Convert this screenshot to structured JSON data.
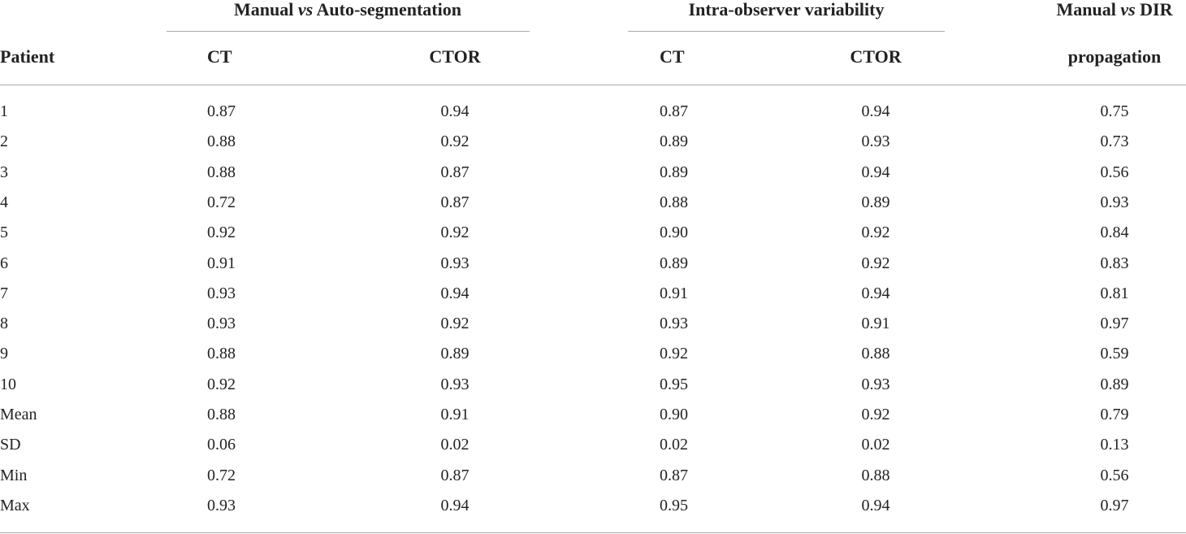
{
  "table": {
    "groups": [
      {
        "parts": [
          "Manual",
          "vs",
          "Auto-segmentation"
        ]
      },
      {
        "parts": [
          "Intra-observer variability"
        ]
      },
      {
        "parts": [
          "Manual",
          "vs",
          "DIR"
        ]
      }
    ],
    "columns": [
      "Patient",
      "CT",
      "CTOR",
      "CT",
      "CTOR",
      "propagation"
    ],
    "rows": [
      [
        "1",
        "0.87",
        "0.94",
        "0.87",
        "0.94",
        "0.75"
      ],
      [
        "2",
        "0.88",
        "0.92",
        "0.89",
        "0.93",
        "0.73"
      ],
      [
        "3",
        "0.88",
        "0.87",
        "0.89",
        "0.94",
        "0.56"
      ],
      [
        "4",
        "0.72",
        "0.87",
        "0.88",
        "0.89",
        "0.93"
      ],
      [
        "5",
        "0.92",
        "0.92",
        "0.90",
        "0.92",
        "0.84"
      ],
      [
        "6",
        "0.91",
        "0.93",
        "0.89",
        "0.92",
        "0.83"
      ],
      [
        "7",
        "0.93",
        "0.94",
        "0.91",
        "0.94",
        "0.81"
      ],
      [
        "8",
        "0.93",
        "0.92",
        "0.93",
        "0.91",
        "0.97"
      ],
      [
        "9",
        "0.88",
        "0.89",
        "0.92",
        "0.88",
        "0.59"
      ],
      [
        "10",
        "0.92",
        "0.93",
        "0.95",
        "0.93",
        "0.89"
      ],
      [
        "Mean",
        "0.88",
        "0.91",
        "0.90",
        "0.92",
        "0.79"
      ],
      [
        "SD",
        "0.06",
        "0.02",
        "0.02",
        "0.02",
        "0.13"
      ],
      [
        "Min",
        "0.72",
        "0.87",
        "0.87",
        "0.88",
        "0.56"
      ],
      [
        "Max",
        "0.93",
        "0.94",
        "0.95",
        "0.94",
        "0.97"
      ]
    ]
  }
}
